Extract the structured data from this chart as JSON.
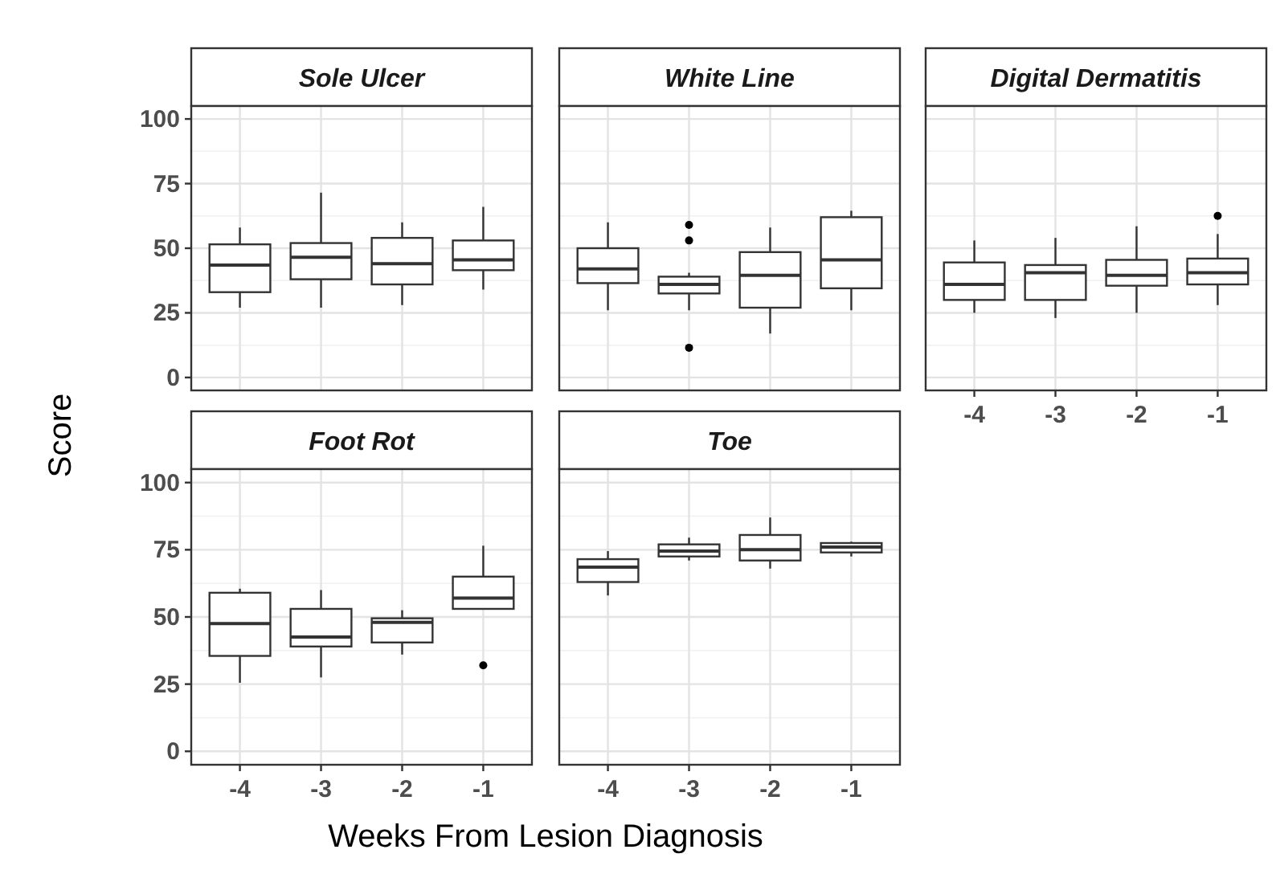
{
  "chart_data": [
    {
      "type": "box",
      "title": "Sole Ulcer",
      "ylabel": "Score",
      "categories": [
        "-4",
        "-3",
        "-2",
        "-1"
      ],
      "ylim": [
        -5,
        105
      ],
      "yticks": [
        0,
        25,
        50,
        75,
        100
      ],
      "grid": true,
      "tick_labels": "y",
      "boxes": [
        {
          "low": 27,
          "q1": 33,
          "median": 43.5,
          "q3": 51.5,
          "high": 58
        },
        {
          "low": 27,
          "q1": 38,
          "median": 46.5,
          "q3": 52,
          "high": 71.5
        },
        {
          "low": 28,
          "q1": 36,
          "median": 44,
          "q3": 54,
          "high": 60
        },
        {
          "low": 34,
          "q1": 41.5,
          "median": 45.5,
          "q3": 53,
          "high": 66
        }
      ]
    },
    {
      "type": "box",
      "title": "White Line",
      "categories": [
        "-4",
        "-3",
        "-2",
        "-1"
      ],
      "ylim": [
        -5,
        105
      ],
      "yticks": [
        0,
        25,
        50,
        75,
        100
      ],
      "grid": true,
      "tick_labels": false,
      "boxes": [
        {
          "low": 26,
          "q1": 36.5,
          "median": 42,
          "q3": 50,
          "high": 60
        },
        {
          "low": 26,
          "q1": 32.5,
          "median": 36,
          "q3": 39,
          "high": 40.5,
          "outliers": [
            59,
            53,
            11.5
          ]
        },
        {
          "low": 17,
          "q1": 27,
          "median": 39.5,
          "q3": 48.5,
          "high": 58
        },
        {
          "low": 26,
          "q1": 34.5,
          "median": 45.5,
          "q3": 62,
          "high": 64.5
        }
      ]
    },
    {
      "type": "box",
      "title": "Digital Dermatitis",
      "categories": [
        "-4",
        "-3",
        "-2",
        "-1"
      ],
      "ylim": [
        -5,
        105
      ],
      "yticks": [
        0,
        25,
        50,
        75,
        100
      ],
      "grid": true,
      "tick_labels": "x",
      "boxes": [
        {
          "low": 25,
          "q1": 30,
          "median": 36,
          "q3": 44.5,
          "high": 53
        },
        {
          "low": 23,
          "q1": 30,
          "median": 40.5,
          "q3": 43.5,
          "high": 54
        },
        {
          "low": 25,
          "q1": 35.5,
          "median": 39.5,
          "q3": 45.5,
          "high": 58.5
        },
        {
          "low": 28,
          "q1": 36,
          "median": 40.5,
          "q3": 46,
          "high": 55.5,
          "outliers": [
            62.5
          ]
        }
      ]
    },
    {
      "type": "box",
      "title": "Foot Rot",
      "xlabel": "Weeks From Lesion Diagnosis",
      "categories": [
        "-4",
        "-3",
        "-2",
        "-1"
      ],
      "ylim": [
        -5,
        105
      ],
      "yticks": [
        0,
        25,
        50,
        75,
        100
      ],
      "grid": true,
      "boxes": [
        {
          "low": 25.5,
          "q1": 35.5,
          "median": 47.5,
          "q3": 59,
          "high": 60.5
        },
        {
          "low": 27.5,
          "q1": 39,
          "median": 42.5,
          "q3": 53,
          "high": 60
        },
        {
          "low": 36,
          "q1": 40.5,
          "median": 48,
          "q3": 49.5,
          "high": 52.5
        },
        {
          "low": 53,
          "q1": 53,
          "median": 57,
          "q3": 65,
          "high": 76.5,
          "outliers": [
            32
          ]
        }
      ]
    },
    {
      "type": "box",
      "title": "Toe",
      "categories": [
        "-4",
        "-3",
        "-2",
        "-1"
      ],
      "ylim": [
        -5,
        105
      ],
      "yticks": [
        0,
        25,
        50,
        75,
        100
      ],
      "grid": true,
      "tick_labels": "x",
      "boxes": [
        {
          "low": 58,
          "q1": 63,
          "median": 68.5,
          "q3": 71.5,
          "high": 74.5
        },
        {
          "low": 71,
          "q1": 72.5,
          "median": 74.5,
          "q3": 77,
          "high": 79.5
        },
        {
          "low": 68,
          "q1": 71,
          "median": 75,
          "q3": 80.5,
          "high": 87
        },
        {
          "low": 72.5,
          "q1": 74,
          "median": 76,
          "q3": 77.5,
          "high": 78
        }
      ]
    }
  ]
}
